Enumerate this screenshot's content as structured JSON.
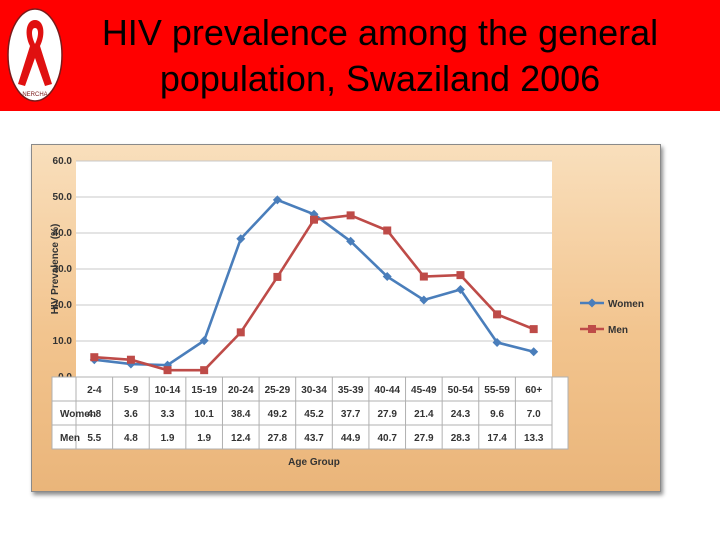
{
  "slide": {
    "title": "HIV prevalence among the general\npopulation, Swaziland 2006",
    "logo_text": "NERCHA",
    "header_color": "#ff0000"
  },
  "chart_data": {
    "type": "line",
    "xlabel": "Age Group",
    "ylabel": "HIV Prevalence (%)",
    "ylim": [
      0,
      60
    ],
    "yticks": [
      "0.0",
      "10.0",
      "20.0",
      "30.0",
      "40.0",
      "50.0",
      "60.0"
    ],
    "grid": true,
    "legend_position": "right",
    "categories": [
      "2-4",
      "5-9",
      "10-14",
      "15-19",
      "20-24",
      "25-29",
      "30-34",
      "35-39",
      "40-44",
      "45-49",
      "50-54",
      "55-59",
      "60+"
    ],
    "series": [
      {
        "name": "Women",
        "color": "#4a7ebb",
        "marker": "diamond",
        "values": [
          4.8,
          3.6,
          3.3,
          10.1,
          38.4,
          49.2,
          45.2,
          37.7,
          27.9,
          21.4,
          24.3,
          9.6,
          7.0
        ],
        "labels": [
          "4.8",
          "3.6",
          "3.3",
          "10.1",
          "38.4",
          "49.2",
          "45.2",
          "37.7",
          "27.9",
          "21.4",
          "24.3",
          "9.6",
          "7.0"
        ]
      },
      {
        "name": "Men",
        "color": "#be4b48",
        "marker": "square",
        "values": [
          5.5,
          4.8,
          1.9,
          1.9,
          12.4,
          27.8,
          43.7,
          44.9,
          40.7,
          27.9,
          28.3,
          17.4,
          13.3
        ],
        "labels": [
          "5.5",
          "4.8",
          "1.9",
          "1.9",
          "12.4",
          "27.8",
          "43.7",
          "44.9",
          "40.7",
          "27.9",
          "28.3",
          "17.4",
          "13.3"
        ]
      }
    ]
  }
}
